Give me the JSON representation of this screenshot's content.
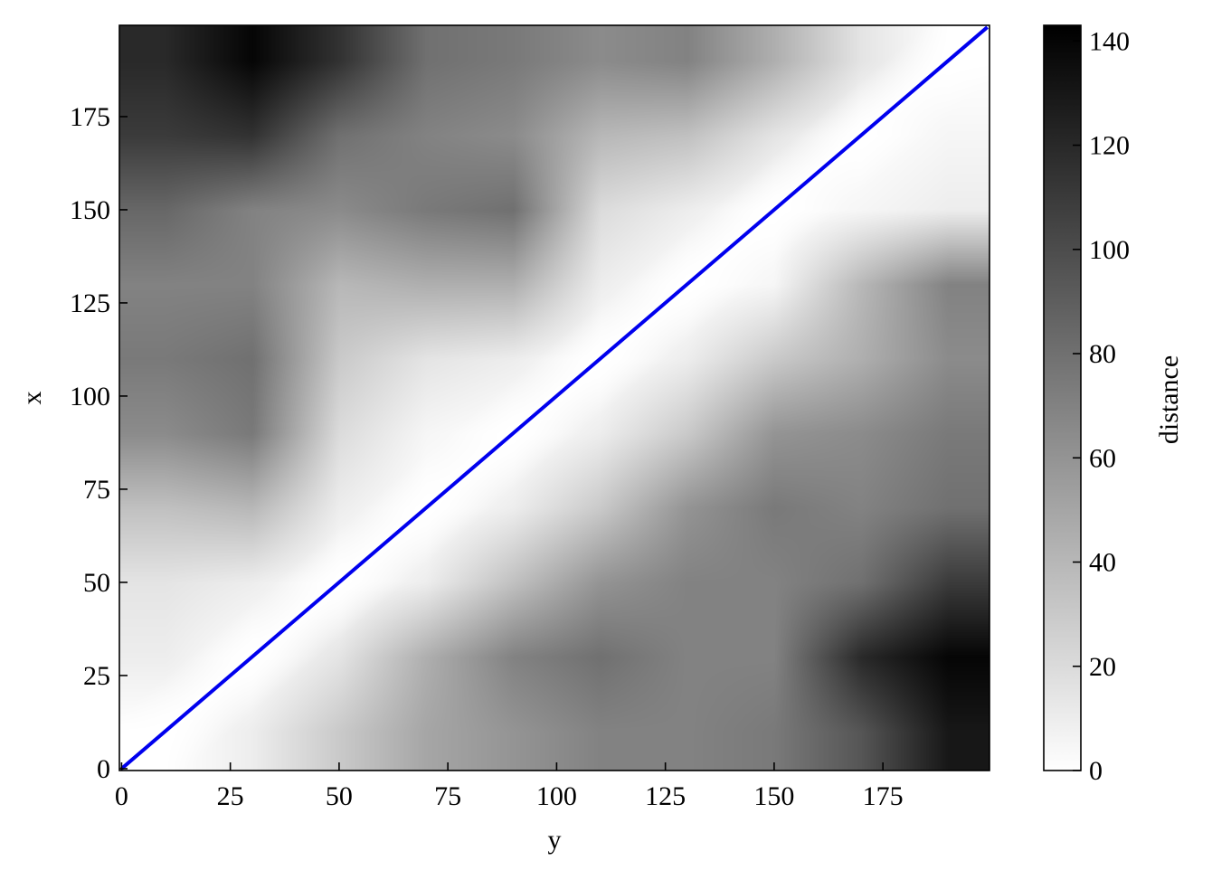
{
  "chart_data": {
    "type": "heatmap",
    "title": "",
    "xlabel": "y",
    "ylabel": "x",
    "colorbar_label": "distance",
    "colormap": "gray_r",
    "vmin": 0,
    "vmax": 143,
    "xlim": [
      -0.5,
      199.5
    ],
    "ylim": [
      -0.5,
      199.5
    ],
    "origin": "lower",
    "xticks": [
      0,
      25,
      50,
      75,
      100,
      125,
      150,
      175
    ],
    "yticks": [
      0,
      25,
      50,
      75,
      100,
      125,
      150,
      175
    ],
    "colorbar_ticks": [
      0,
      20,
      40,
      60,
      80,
      100,
      120,
      140
    ],
    "tick_direction": "in",
    "grid": false,
    "grid_sample_x": [
      10,
      30,
      50,
      70,
      90,
      110,
      130,
      150,
      170,
      190
    ],
    "grid_sample_y": [
      10,
      30,
      50,
      70,
      90,
      110,
      130,
      150,
      170,
      190
    ],
    "values_rows_by_x": [
      [
        0,
        10,
        30,
        50,
        60,
        70,
        70,
        75,
        95,
        130
      ],
      [
        10,
        0,
        15,
        45,
        70,
        80,
        70,
        70,
        120,
        140
      ],
      [
        15,
        10,
        0,
        10,
        35,
        60,
        70,
        70,
        80,
        110
      ],
      [
        35,
        40,
        10,
        0,
        10,
        30,
        60,
        75,
        70,
        80
      ],
      [
        65,
        75,
        20,
        5,
        0,
        10,
        30,
        60,
        65,
        75
      ],
      [
        75,
        80,
        30,
        15,
        10,
        0,
        10,
        30,
        45,
        65
      ],
      [
        70,
        70,
        40,
        45,
        45,
        10,
        0,
        5,
        40,
        70
      ],
      [
        85,
        70,
        65,
        75,
        80,
        20,
        10,
        0,
        5,
        10
      ],
      [
        110,
        115,
        80,
        70,
        65,
        40,
        35,
        15,
        0,
        5
      ],
      [
        120,
        140,
        115,
        80,
        75,
        65,
        70,
        45,
        15,
        0
      ]
    ],
    "overlay_line": {
      "x": [
        0,
        199
      ],
      "y": [
        0,
        199
      ],
      "color": "#0000ee"
    }
  }
}
